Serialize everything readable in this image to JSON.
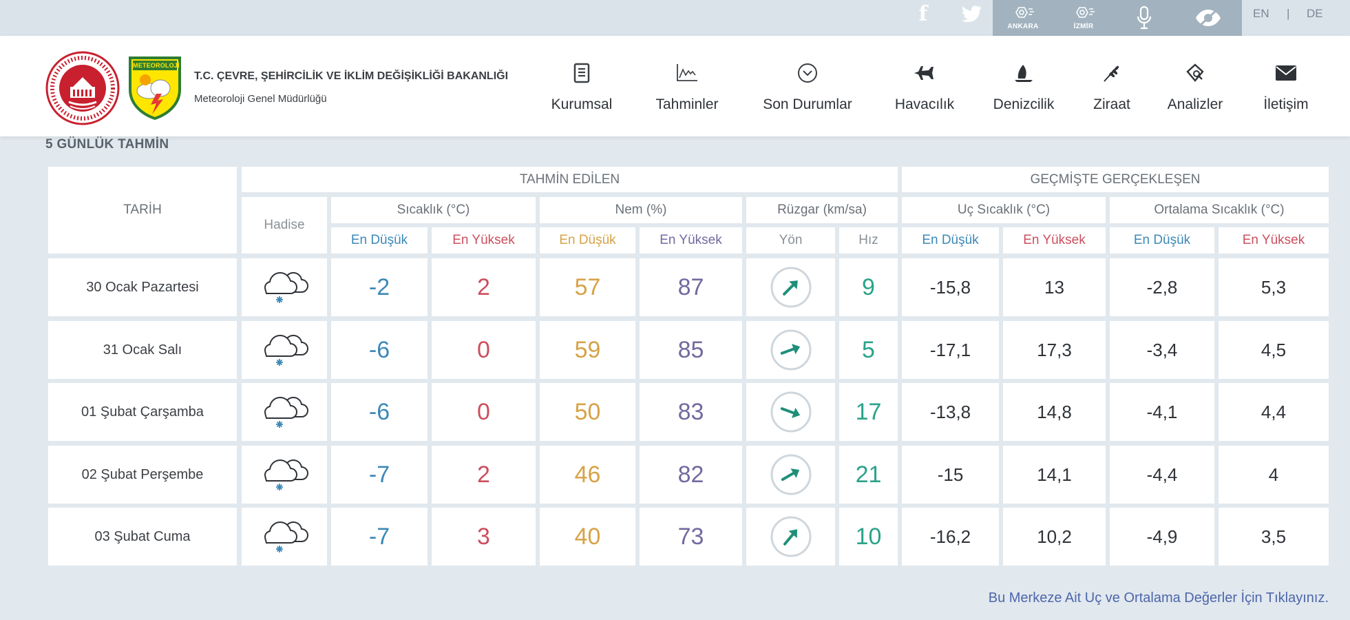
{
  "topbar": {
    "social": [
      "facebook-icon",
      "twitter-icon"
    ],
    "tools": [
      {
        "icon": "city-sensor-icon",
        "label": "ANKARA"
      },
      {
        "icon": "city-sensor-icon",
        "label": "İZMİR"
      },
      {
        "icon": "microphone-icon"
      },
      {
        "icon": "eye-icon"
      }
    ],
    "languages": [
      "EN",
      "|",
      "DE"
    ]
  },
  "header": {
    "org_line1": "T.C. ÇEVRE, ŞEHİRCİLİK VE İKLİM DEĞİŞİKLİĞİ BAKANLIĞI",
    "org_line2": "Meteoroloji Genel Müdürlüğü",
    "logo_text": "METEOROLOJİ",
    "nav": [
      {
        "label": "Kurumsal",
        "icon": "document-icon"
      },
      {
        "label": "Tahminler",
        "icon": "chart-icon"
      },
      {
        "label": "Son Durumlar",
        "icon": "chevron-circle-icon"
      },
      {
        "label": "Havacılık",
        "icon": "plane-icon"
      },
      {
        "label": "Denizcilik",
        "icon": "sailboat-icon"
      },
      {
        "label": "Ziraat",
        "icon": "wheat-icon"
      },
      {
        "label": "Analizler",
        "icon": "analysis-icon"
      },
      {
        "label": "İletişim",
        "icon": "envelope-icon"
      }
    ]
  },
  "section_title": "5 GÜNLÜK TAHMİN",
  "table": {
    "tarih": "TARİH",
    "hadise": "Hadise",
    "group_forecast": "TAHMİN EDİLEN",
    "group_past": "GEÇMİŞTE GERÇEKLEŞEN",
    "col_temp": "Sıcaklık (°C)",
    "col_humidity": "Nem (%)",
    "col_wind": "Rüzgar (km/sa)",
    "col_extreme": "Uç Sıcaklık (°C)",
    "col_average": "Ortalama Sıcaklık (°C)",
    "min": "En Düşük",
    "max": "En Yüksek",
    "yon": "Yön",
    "hiz": "Hız",
    "rows": [
      {
        "date": "30 Ocak Pazartesi",
        "weather_icon": "cloud-snow-icon",
        "temp_min": "-2",
        "temp_max": "2",
        "hum_min": "57",
        "hum_max": "87",
        "wind_dir_deg": 45,
        "wind_speed": "9",
        "ext_min": "-15,8",
        "ext_max": "13",
        "avg_min": "-2,8",
        "avg_max": "5,3"
      },
      {
        "date": "31 Ocak Salı",
        "weather_icon": "cloud-snow-icon",
        "temp_min": "-6",
        "temp_max": "0",
        "hum_min": "59",
        "hum_max": "85",
        "wind_dir_deg": 70,
        "wind_speed": "5",
        "ext_min": "-17,1",
        "ext_max": "17,3",
        "avg_min": "-3,4",
        "avg_max": "4,5"
      },
      {
        "date": "01 Şubat Çarşamba",
        "weather_icon": "cloud-snow-icon",
        "temp_min": "-6",
        "temp_max": "0",
        "hum_min": "50",
        "hum_max": "83",
        "wind_dir_deg": 110,
        "wind_speed": "17",
        "ext_min": "-13,8",
        "ext_max": "14,8",
        "avg_min": "-4,1",
        "avg_max": "4,4"
      },
      {
        "date": "02 Şubat Perşembe",
        "weather_icon": "cloud-snow-icon",
        "temp_min": "-7",
        "temp_max": "2",
        "hum_min": "46",
        "hum_max": "82",
        "wind_dir_deg": 60,
        "wind_speed": "21",
        "ext_min": "-15",
        "ext_max": "14,1",
        "avg_min": "-4,4",
        "avg_max": "4"
      },
      {
        "date": "03 Şubat Cuma",
        "weather_icon": "cloud-snow-icon",
        "temp_min": "-7",
        "temp_max": "3",
        "hum_min": "40",
        "hum_max": "73",
        "wind_dir_deg": 40,
        "wind_speed": "10",
        "ext_min": "-16,2",
        "ext_max": "10,2",
        "avg_min": "-4,9",
        "avg_max": "3,5"
      }
    ]
  },
  "footer_link": "Bu Merkeze Ait Uç ve Ortalama Değerler İçin Tıklayınız.",
  "colors": {
    "min_blue": "#3c88b7",
    "max_red": "#cc4f5e",
    "hum_min_orange": "#d7a247",
    "hum_max_purple": "#716a9f",
    "wind_teal": "#2aa38a",
    "link_blue": "#4d66aa",
    "page_bg": "#e1e8ee"
  }
}
